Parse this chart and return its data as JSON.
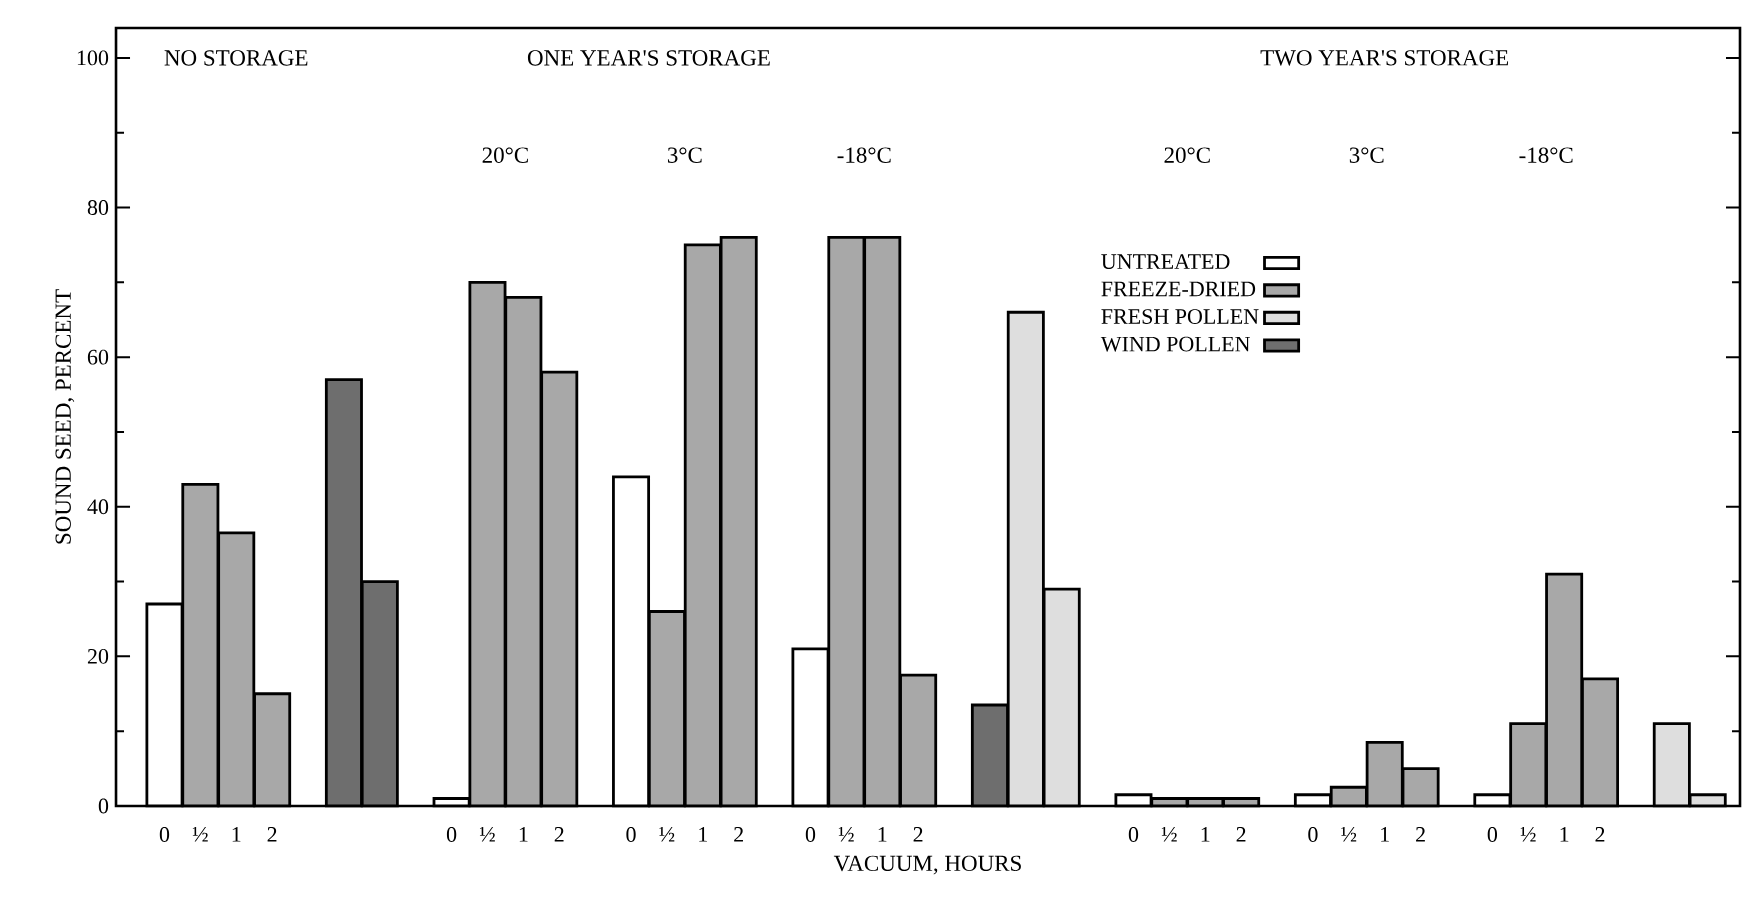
{
  "chart_data": {
    "type": "bar",
    "xlabel": "VACUUM, HOURS",
    "ylabel": "SOUND SEED, PERCENT",
    "annotations": [
      "NO STORAGE",
      "ONE YEAR'S STORAGE",
      "TWO YEAR'S STORAGE",
      "20°C",
      "3°C",
      "-18°C",
      "20°C",
      "3°C",
      "-18°C"
    ],
    "categories": [
      "0",
      "½",
      "1",
      "2",
      null,
      null,
      null,
      null,
      "0",
      "½",
      "1",
      "2",
      null,
      "0",
      "½",
      "1",
      "2",
      null,
      "0",
      "½",
      "1",
      "2",
      null,
      null,
      null,
      null,
      null,
      "0",
      "½",
      "1",
      "2",
      null,
      "0",
      "½",
      "1",
      "2",
      null,
      "0",
      "½",
      "1",
      "2",
      null,
      null,
      null
    ],
    "series": [
      {
        "name": "UNTREATED",
        "color": "#ffffff",
        "values": [
          27,
          null,
          null,
          null,
          null,
          null,
          null,
          null,
          1,
          null,
          null,
          null,
          null,
          44,
          null,
          null,
          null,
          null,
          21,
          null,
          null,
          null,
          null,
          null,
          null,
          null,
          null,
          1.5,
          null,
          null,
          null,
          null,
          1.5,
          null,
          null,
          null,
          null,
          1.5,
          null,
          null,
          null,
          null,
          null,
          null
        ]
      },
      {
        "name": "FREEZE-DRIED",
        "color": "#a8a8a8",
        "values": [
          null,
          43,
          36.5,
          15,
          null,
          null,
          null,
          null,
          null,
          70,
          68,
          58,
          null,
          null,
          26,
          75,
          76,
          null,
          null,
          76,
          76,
          17.5,
          null,
          null,
          null,
          null,
          null,
          null,
          1,
          1,
          1,
          null,
          null,
          2.5,
          8.5,
          5,
          null,
          null,
          11,
          31,
          17,
          null,
          null,
          null
        ]
      },
      {
        "name": "FRESH POLLEN",
        "color": "#dedede",
        "values": [
          null,
          null,
          null,
          null,
          null,
          null,
          null,
          null,
          null,
          null,
          null,
          null,
          null,
          null,
          null,
          null,
          null,
          null,
          null,
          null,
          null,
          null,
          null,
          null,
          66,
          29,
          null,
          null,
          null,
          null,
          null,
          null,
          null,
          null,
          null,
          null,
          null,
          null,
          null,
          null,
          null,
          null,
          11,
          1.5
        ]
      },
      {
        "name": "WIND POLLEN",
        "color": "#6e6e6e",
        "values": [
          null,
          null,
          null,
          null,
          null,
          57,
          30,
          null,
          null,
          null,
          null,
          null,
          null,
          null,
          null,
          null,
          null,
          null,
          null,
          null,
          null,
          null,
          null,
          13.5,
          null,
          null,
          null,
          null,
          null,
          null,
          null,
          null,
          null,
          null,
          null,
          null,
          null,
          null,
          null,
          null,
          null,
          null,
          null,
          null
        ]
      }
    ],
    "ylim": [
      0,
      104
    ],
    "yticks": [
      0,
      20,
      40,
      60,
      80,
      100
    ],
    "legend": "right"
  }
}
